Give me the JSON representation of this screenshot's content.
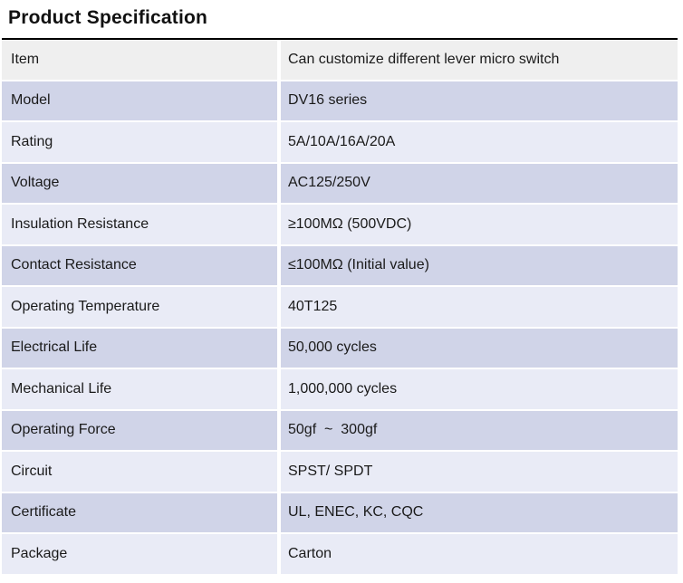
{
  "title": "Product Specification",
  "table": {
    "rows": [
      {
        "label": "Item",
        "value": "Can customize different lever micro switch"
      },
      {
        "label": "Model",
        "value": "DV16 series"
      },
      {
        "label": "Rating",
        "value": "5A/10A/16A/20A"
      },
      {
        "label": "Voltage",
        "value": "AC125/250V"
      },
      {
        "label": "Insulation Resistance",
        "value": "≥100MΩ (500VDC)"
      },
      {
        "label": "Contact Resistance",
        "value": "≤100MΩ (Initial value)"
      },
      {
        "label": "Operating Temperature",
        "value": "40T125"
      },
      {
        "label": "Electrical Life",
        "value": "50,000 cycles"
      },
      {
        "label": "Mechanical Life",
        "value": "1,000,000 cycles"
      },
      {
        "label": "Operating Force",
        "value": "50gf  ~  300gf"
      },
      {
        "label": "Circuit",
        "value": "SPST/ SPDT"
      },
      {
        "label": "Certificate",
        "value": "UL, ENEC, KC, CQC"
      },
      {
        "label": "Package",
        "value": "Carton"
      }
    ]
  },
  "colors": {
    "header_row_bg": "#efefef",
    "odd_row_bg": "#d0d4e8",
    "even_row_bg": "#e9ebf6",
    "top_border": "#000000",
    "text": "#1a1a1a"
  }
}
